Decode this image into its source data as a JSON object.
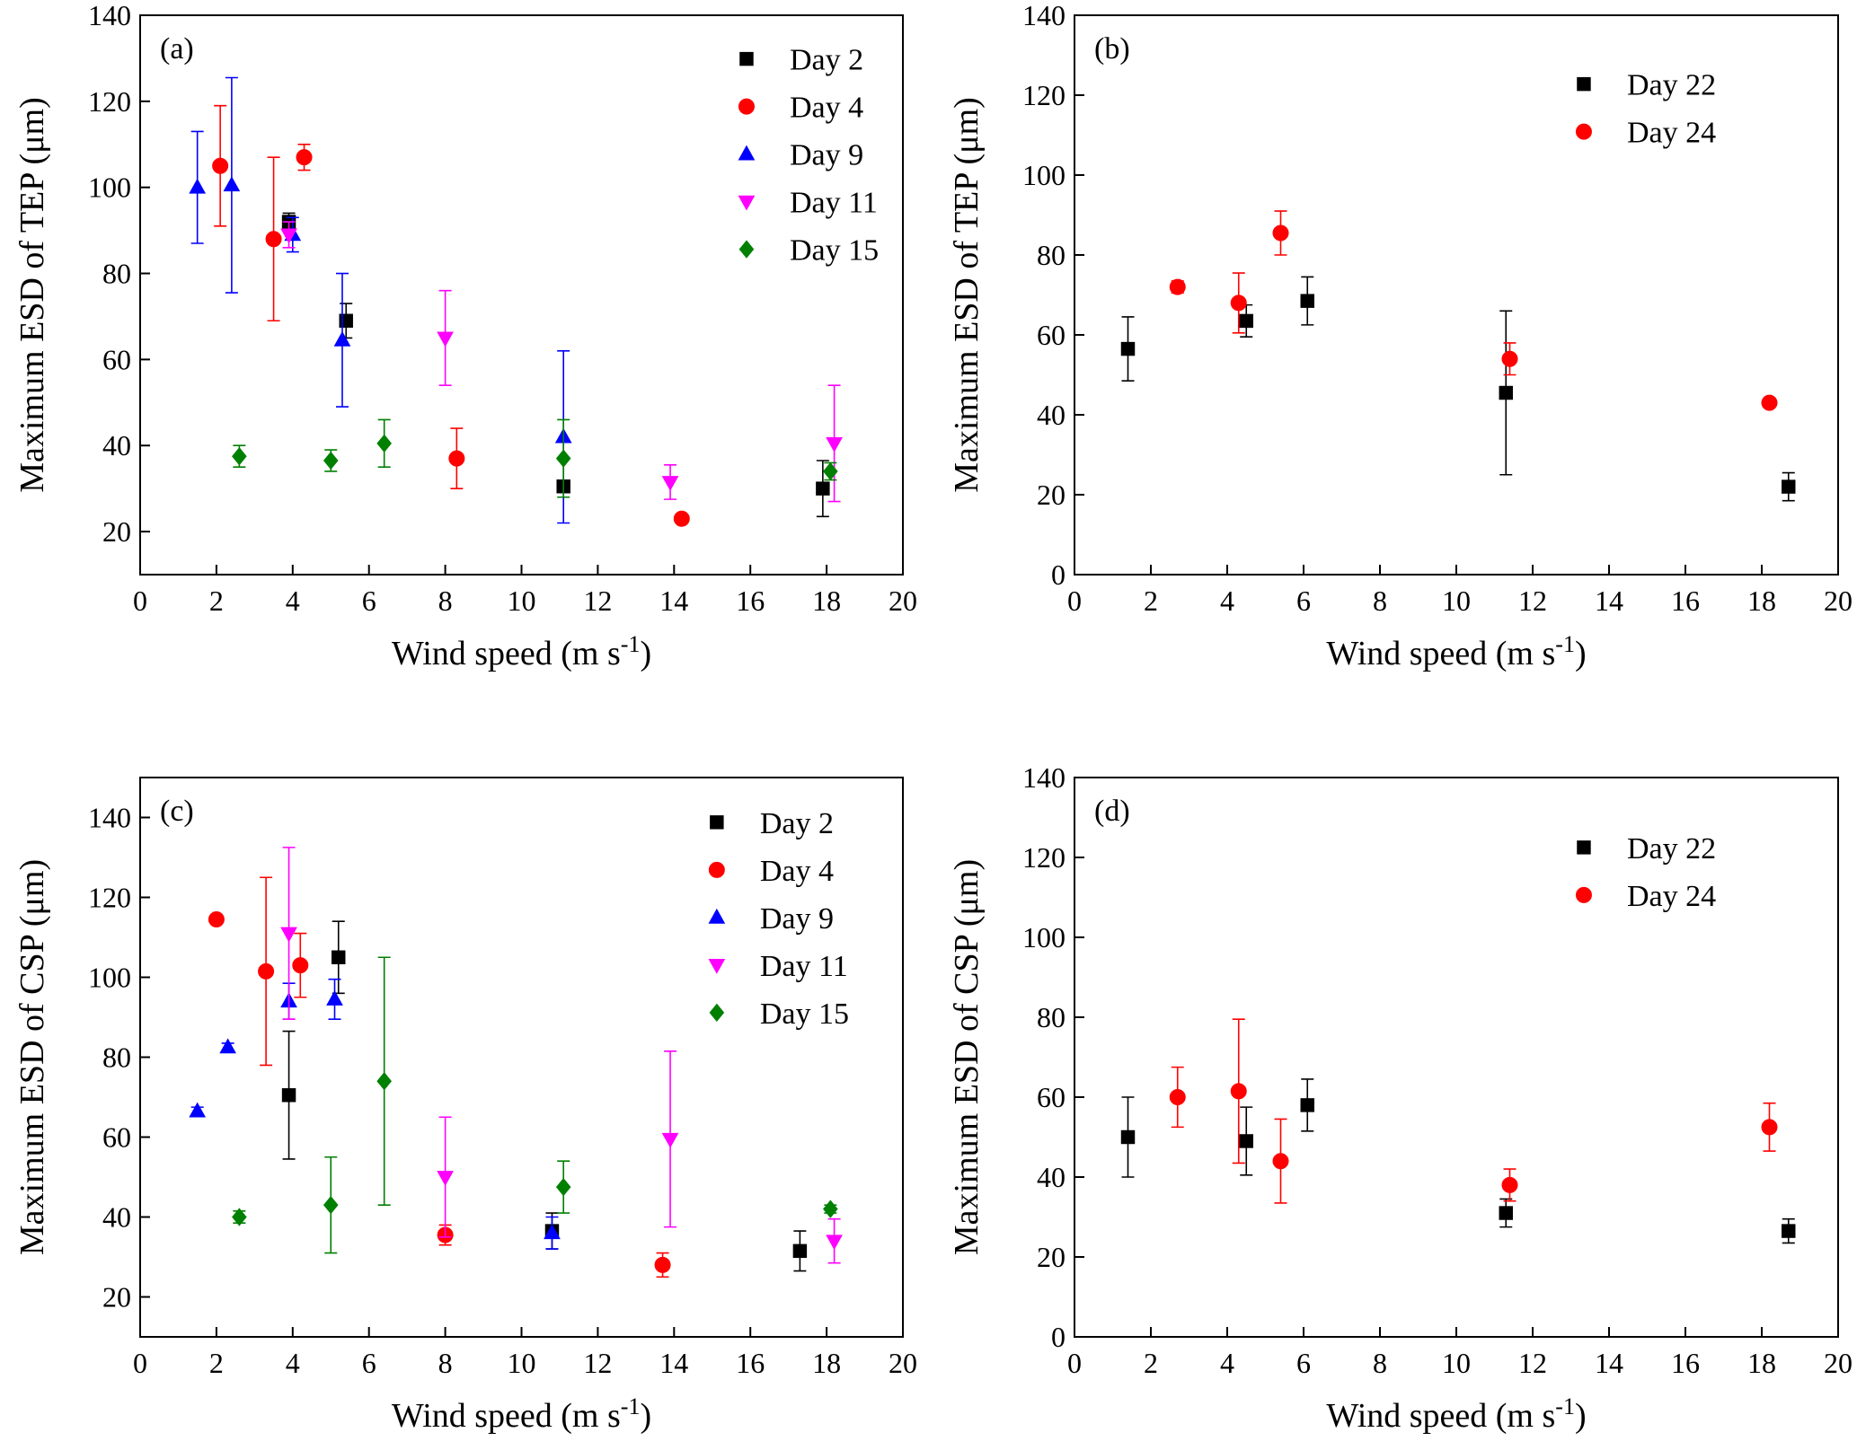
{
  "chart_data": [
    {
      "type": "scatter",
      "panel_label": "(a)",
      "ylabel": "Maximum ESD of TEP (μm)",
      "xlabel": {
        "text": "Wind speed (m s",
        "sup": "-1",
        "end": ")"
      },
      "xlim": [
        0,
        20
      ],
      "xticks": [
        0,
        2,
        4,
        6,
        8,
        10,
        12,
        14,
        16,
        18,
        20
      ],
      "ylim": [
        10,
        140
      ],
      "yticks": [
        20,
        40,
        60,
        80,
        100,
        120,
        140
      ],
      "legend": "upper right",
      "series": [
        {
          "name": "Day 2",
          "color": "#000000",
          "marker": "square",
          "x": [
            3.9,
            5.4,
            11.1,
            17.9
          ],
          "values": [
            92,
            69,
            30.5,
            30
          ],
          "errors": [
            2,
            4,
            null,
            6.5
          ]
        },
        {
          "name": "Day 4",
          "color": "#ff0000",
          "marker": "circle",
          "x": [
            2.1,
            3.5,
            4.3,
            8.3,
            14.2
          ],
          "values": [
            105,
            88,
            107,
            37,
            23
          ],
          "errors": [
            14,
            19,
            3,
            7,
            null
          ]
        },
        {
          "name": "Day 9",
          "color": "#0000ff",
          "marker": "triangle",
          "x": [
            1.5,
            2.4,
            4.0,
            5.3,
            11.1
          ],
          "values": [
            100,
            100.5,
            89,
            64.5,
            42
          ],
          "errors": [
            13,
            25,
            4,
            15.5,
            20
          ]
        },
        {
          "name": "Day 11",
          "color": "#ff00ff",
          "marker": "triangle-down",
          "x": [
            3.9,
            8.0,
            13.9,
            18.2
          ],
          "values": [
            89,
            65,
            31.5,
            40.5
          ],
          "errors": [
            3,
            11,
            4,
            13.5
          ]
        },
        {
          "name": "Day 15",
          "color": "#008000",
          "marker": "diamond",
          "x": [
            2.6,
            5.0,
            6.4,
            11.1,
            18.1
          ],
          "values": [
            37.5,
            36.5,
            40.5,
            37,
            34
          ],
          "errors": [
            2.5,
            2.5,
            5.5,
            9,
            2
          ]
        }
      ]
    },
    {
      "type": "scatter",
      "panel_label": "(b)",
      "ylabel": "Maximum ESD of TEP (μm)",
      "xlabel": {
        "text": "Wind speed (m s",
        "sup": "-1",
        "end": ")"
      },
      "xlim": [
        0,
        20
      ],
      "xticks": [
        0,
        2,
        4,
        6,
        8,
        10,
        12,
        14,
        16,
        18,
        20
      ],
      "ylim": [
        0,
        140
      ],
      "yticks": [
        0,
        20,
        40,
        60,
        80,
        100,
        120,
        140
      ],
      "legend": "upper right",
      "series": [
        {
          "name": "Day 22",
          "color": "#000000",
          "marker": "square",
          "x": [
            1.4,
            4.5,
            6.1,
            11.3,
            18.7
          ],
          "values": [
            56.5,
            63.5,
            68.5,
            45.5,
            22
          ],
          "errors": [
            8,
            4,
            6,
            20.5,
            3.5
          ]
        },
        {
          "name": "Day 24",
          "color": "#ff0000",
          "marker": "circle",
          "x": [
            2.7,
            4.3,
            5.4,
            11.4,
            18.2
          ],
          "values": [
            72,
            68,
            85.5,
            54,
            43
          ],
          "errors": [
            1.5,
            7.5,
            5.5,
            4,
            null
          ]
        }
      ]
    },
    {
      "type": "scatter",
      "panel_label": "(c)",
      "ylabel": "Maximum ESD of CSP (μm)",
      "xlabel": {
        "text": "Wind speed (m s",
        "sup": "-1",
        "end": ")"
      },
      "xlim": [
        0,
        20
      ],
      "xticks": [
        0,
        2,
        4,
        6,
        8,
        10,
        12,
        14,
        16,
        18,
        20
      ],
      "ylim": [
        10,
        150
      ],
      "yticks": [
        20,
        40,
        60,
        80,
        100,
        120,
        140
      ],
      "legend": "upper right",
      "series": [
        {
          "name": "Day 2",
          "color": "#000000",
          "marker": "square",
          "x": [
            3.9,
            5.2,
            10.8,
            17.3
          ],
          "values": [
            70.5,
            105,
            36.5,
            31.5
          ],
          "errors": [
            16,
            9,
            4.5,
            5
          ]
        },
        {
          "name": "Day 4",
          "color": "#ff0000",
          "marker": "circle",
          "x": [
            2.0,
            3.3,
            4.2,
            8.0,
            13.7
          ],
          "values": [
            114.5,
            101.5,
            103,
            35.5,
            28
          ],
          "errors": [
            null,
            23.5,
            8,
            2.5,
            3
          ]
        },
        {
          "name": "Day 9",
          "color": "#0000ff",
          "marker": "triangle",
          "x": [
            1.5,
            2.3,
            3.9,
            5.1,
            10.8
          ],
          "values": [
            66.5,
            82.5,
            94,
            94.5,
            36
          ],
          "errors": [
            1,
            1,
            4.5,
            5,
            4
          ]
        },
        {
          "name": "Day 11",
          "color": "#ff00ff",
          "marker": "triangle-down",
          "x": [
            3.9,
            8.0,
            13.9,
            18.2
          ],
          "values": [
            111,
            50,
            59.5,
            34
          ],
          "errors": [
            21.5,
            15,
            22,
            5.5
          ]
        },
        {
          "name": "Day 15",
          "color": "#008000",
          "marker": "diamond",
          "x": [
            2.6,
            5.0,
            6.4,
            11.1,
            18.1
          ],
          "values": [
            40,
            43,
            74,
            47.5,
            42
          ],
          "errors": [
            1.5,
            12,
            31,
            6.5,
            1
          ]
        }
      ]
    },
    {
      "type": "scatter",
      "panel_label": "(d)",
      "ylabel": "Maximum ESD of CSP (μm)",
      "xlabel": {
        "text": "Wind speed (m s",
        "sup": "-1",
        "end": ")"
      },
      "xlim": [
        0,
        20
      ],
      "xticks": [
        0,
        2,
        4,
        6,
        8,
        10,
        12,
        14,
        16,
        18,
        20
      ],
      "ylim": [
        0,
        140
      ],
      "yticks": [
        0,
        20,
        40,
        60,
        80,
        100,
        120,
        140
      ],
      "legend": "upper right",
      "series": [
        {
          "name": "Day 22",
          "color": "#000000",
          "marker": "square",
          "x": [
            1.4,
            4.5,
            6.1,
            11.3,
            18.7
          ],
          "values": [
            50,
            49,
            58,
            31,
            26.5
          ],
          "errors": [
            10,
            8.5,
            6.5,
            3.5,
            3
          ]
        },
        {
          "name": "Day 24",
          "color": "#ff0000",
          "marker": "circle",
          "x": [
            2.7,
            4.3,
            5.4,
            11.4,
            18.2
          ],
          "values": [
            60,
            61.5,
            44,
            38,
            52.5
          ],
          "errors": [
            7.5,
            18,
            10.5,
            4,
            6
          ]
        }
      ]
    }
  ]
}
